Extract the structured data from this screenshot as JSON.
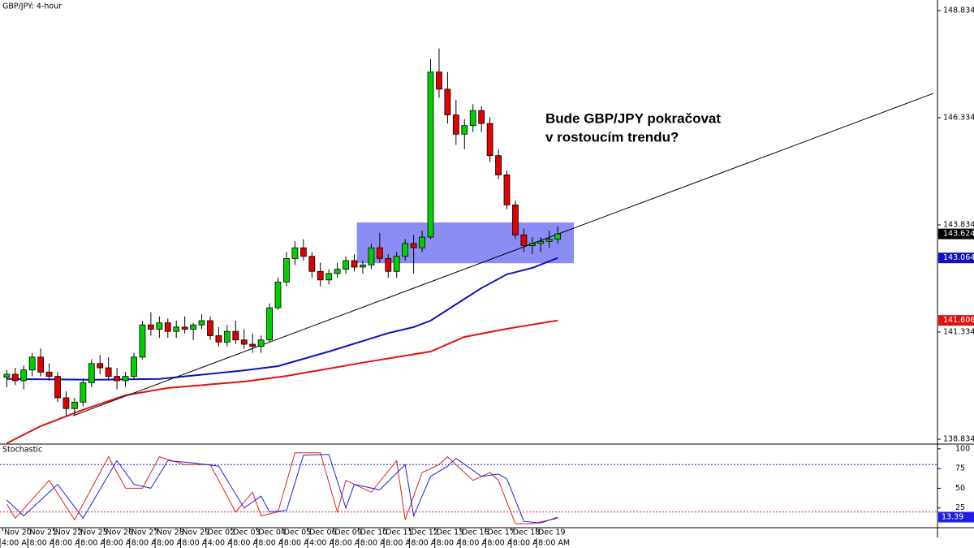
{
  "chart_data": {
    "type": "candlestick",
    "title": "GBP/JPY: 4-hour",
    "annotation_lines": [
      "Bude GBP/JPY pokračovat",
      "v rostoucím trendu?"
    ],
    "up_color": "#00d000",
    "down_color": "#e00000",
    "open": [
      140.28,
      140.35,
      140.2,
      140.45,
      140.75,
      140.4,
      140.3,
      139.8,
      139.55,
      139.7,
      140.15,
      140.6,
      140.5,
      140.3,
      140.2,
      140.3,
      140.75,
      141.5,
      141.4,
      141.55,
      141.35,
      141.45,
      141.4,
      141.5,
      141.6,
      141.25,
      141.1,
      141.35,
      141.15,
      141.05,
      141.0,
      141.15,
      141.9,
      142.5,
      143.05,
      143.3,
      143.1,
      142.75,
      142.55,
      142.7,
      142.8,
      143.0,
      142.85,
      142.9,
      143.3,
      143.05,
      142.75,
      143.1,
      143.4,
      143.3,
      143.55,
      147.4,
      147.0,
      146.4,
      145.95,
      146.15,
      146.5,
      146.2,
      145.45,
      145.0,
      144.3,
      143.6,
      143.35,
      143.4,
      143.45,
      143.5
    ],
    "high": [
      140.45,
      140.5,
      140.55,
      140.85,
      140.95,
      140.6,
      140.4,
      139.95,
      139.8,
      140.25,
      140.7,
      140.8,
      140.75,
      140.5,
      140.4,
      140.85,
      141.6,
      141.8,
      141.7,
      141.65,
      141.6,
      141.7,
      141.55,
      141.75,
      141.7,
      141.45,
      141.5,
      141.6,
      141.4,
      141.3,
      141.25,
      142.0,
      142.6,
      143.2,
      143.45,
      143.5,
      143.2,
      142.95,
      142.8,
      142.95,
      143.1,
      143.15,
      143.0,
      143.4,
      143.65,
      143.15,
      143.2,
      143.5,
      143.6,
      143.7,
      147.7,
      147.95,
      147.4,
      146.75,
      146.3,
      146.65,
      146.6,
      146.35,
      145.6,
      145.1,
      144.4,
      143.75,
      143.55,
      143.55,
      143.7,
      143.8
    ],
    "low": [
      140.05,
      140.1,
      140.0,
      140.3,
      140.3,
      140.2,
      139.7,
      139.38,
      139.4,
      139.6,
      140.05,
      140.35,
      140.2,
      140.0,
      140.05,
      140.25,
      140.7,
      141.25,
      141.2,
      141.2,
      141.2,
      141.3,
      141.15,
      141.4,
      141.15,
      141.0,
      141.0,
      141.05,
      140.95,
      140.85,
      140.85,
      141.1,
      141.85,
      142.4,
      142.9,
      143.0,
      142.6,
      142.4,
      142.45,
      142.6,
      142.7,
      142.75,
      142.7,
      142.8,
      142.95,
      142.6,
      142.6,
      143.0,
      142.7,
      143.2,
      143.5,
      146.8,
      146.2,
      145.7,
      145.6,
      146.0,
      146.0,
      145.3,
      144.9,
      144.2,
      143.5,
      143.2,
      143.15,
      143.2,
      143.3,
      143.4
    ],
    "close": [
      140.35,
      140.2,
      140.45,
      140.75,
      140.4,
      140.3,
      139.8,
      139.55,
      139.7,
      140.15,
      140.6,
      140.5,
      140.3,
      140.2,
      140.3,
      140.75,
      141.5,
      141.4,
      141.55,
      141.35,
      141.45,
      141.4,
      141.5,
      141.6,
      141.25,
      141.1,
      141.35,
      141.15,
      141.05,
      141.0,
      141.15,
      141.9,
      142.5,
      143.05,
      143.3,
      143.1,
      142.75,
      142.55,
      142.7,
      142.8,
      143.0,
      142.85,
      142.9,
      143.3,
      143.05,
      142.75,
      143.1,
      143.4,
      143.3,
      143.55,
      147.4,
      147.0,
      146.4,
      145.95,
      146.15,
      146.5,
      146.2,
      145.45,
      145.0,
      144.3,
      143.6,
      143.35,
      143.4,
      143.45,
      143.5,
      143.624
    ],
    "close_label_color": "#000000",
    "overlays": [
      {
        "color": "#1010c0",
        "x": [
          0,
          10,
          18,
          28,
          32,
          38,
          45,
          48,
          50,
          53,
          56,
          59,
          62,
          65
        ],
        "values": [
          140.24,
          140.22,
          140.24,
          140.44,
          140.54,
          140.88,
          141.31,
          141.45,
          141.6,
          141.98,
          142.36,
          142.68,
          142.83,
          143.064
        ]
      },
      {
        "color": "#e01010",
        "x": [
          0,
          4,
          9,
          14,
          19,
          28,
          33,
          42,
          50,
          54,
          59,
          65
        ],
        "values": [
          138.74,
          139.14,
          139.52,
          139.86,
          140.03,
          140.18,
          140.31,
          140.62,
          140.88,
          141.22,
          141.41,
          141.606
        ]
      }
    ],
    "trendline": {
      "color": "#000000",
      "x": [
        7.8,
        109.3
      ],
      "values": [
        139.38,
        146.9
      ]
    },
    "zone": {
      "color": "#8c8cf5",
      "x": [
        41.3,
        66.9
      ],
      "values": [
        142.94,
        143.89
      ]
    },
    "xlim": [
      -0.8,
      109.8
    ],
    "ylim": [
      138.74,
      149.08
    ],
    "yticks": [
      148.834,
      146.334,
      143.834,
      141.334,
      138.834
    ],
    "xticks": [
      {
        "value": -0.5,
        "label": "Nov 20"
      },
      {
        "value": 2.5,
        "label": "Nov 21"
      },
      {
        "value": 5.5,
        "label": "Nov 22"
      },
      {
        "value": 8.5,
        "label": "Nov 25"
      },
      {
        "value": 11.5,
        "label": "Nov 26"
      },
      {
        "value": 14.5,
        "label": "Nov 27"
      },
      {
        "value": 17.5,
        "label": "Nov 28"
      },
      {
        "value": 20.5,
        "label": "Nov 29"
      },
      {
        "value": 23.5,
        "label": "Dec 02"
      },
      {
        "value": 26.5,
        "label": "Dec 03"
      },
      {
        "value": 29.5,
        "label": "Dec 04"
      },
      {
        "value": 32.5,
        "label": "Dec 05"
      },
      {
        "value": 35.5,
        "label": "Dec 06"
      },
      {
        "value": 38.5,
        "label": "Dec 09"
      },
      {
        "value": 41.5,
        "label": "Dec 10"
      },
      {
        "value": 44.5,
        "label": "Dec 11"
      },
      {
        "value": 47.5,
        "label": "Dec 12"
      },
      {
        "value": 50.5,
        "label": "Dec 13"
      },
      {
        "value": 53.5,
        "label": "Dec 16"
      },
      {
        "value": 56.5,
        "label": "Dec 17"
      },
      {
        "value": 59.5,
        "label": "Dec 18"
      },
      {
        "value": 62.5,
        "label": "Dec 19"
      }
    ],
    "xticks_time": [
      {
        "value": -0.8,
        "label": "4:00 AM"
      },
      {
        "value": 2.5,
        "label": "8:00 AM"
      },
      {
        "value": 5.5,
        "label": "8:00 AM"
      },
      {
        "value": 8.5,
        "label": "8:00 AM"
      },
      {
        "value": 11.5,
        "label": "8:00 AM"
      },
      {
        "value": 14.5,
        "label": "8:00 AM"
      },
      {
        "value": 17.5,
        "label": "8:00 AM"
      },
      {
        "value": 20.5,
        "label": "8:00 AM"
      },
      {
        "value": 23.5,
        "label": "4:00 AM"
      },
      {
        "value": 26.5,
        "label": "8:00 AM"
      },
      {
        "value": 29.5,
        "label": "8:00 AM"
      },
      {
        "value": 32.5,
        "label": "8:00 AM"
      },
      {
        "value": 35.5,
        "label": "4:00 AM"
      },
      {
        "value": 38.5,
        "label": "8:00 AM"
      },
      {
        "value": 41.5,
        "label": "8:00 AM"
      },
      {
        "value": 44.5,
        "label": "8:00 AM"
      },
      {
        "value": 47.5,
        "label": "8:00 AM"
      },
      {
        "value": 50.5,
        "label": "8:00 AM"
      },
      {
        "value": 53.5,
        "label": "8:00 AM"
      },
      {
        "value": 56.5,
        "label": "8:00 AM"
      },
      {
        "value": 59.5,
        "label": "8:00 AM"
      },
      {
        "value": 62.5,
        "label": "8:00 AM"
      }
    ],
    "indicator": {
      "type": "line",
      "title": "Stochastic",
      "ylim": [
        0,
        105
      ],
      "yticks": [
        100,
        75,
        50,
        25
      ],
      "levels": [
        {
          "value": 80,
          "color": "#2020c0"
        },
        {
          "value": 20,
          "color": "#d02020"
        }
      ],
      "series": [
        {
          "color": "#e02020",
          "x": [
            0,
            1,
            5,
            8,
            12,
            14,
            16,
            18,
            21,
            24,
            27,
            29,
            30,
            32,
            34,
            37,
            39,
            40,
            43,
            46,
            47,
            49,
            51,
            52,
            55,
            57,
            58,
            60,
            62,
            65
          ],
          "values": [
            30,
            12,
            60,
            10,
            90,
            50,
            50,
            90,
            80,
            80,
            20,
            45,
            15,
            20,
            95,
            95,
            20,
            60,
            45,
            85,
            10,
            70,
            80,
            90,
            60,
            70,
            60,
            5,
            5,
            12
          ]
        },
        {
          "color": "#2020e0",
          "x": [
            0,
            2,
            6,
            9,
            13,
            15,
            17,
            19,
            22,
            25,
            28,
            30,
            31,
            33,
            35,
            38,
            40,
            41,
            44,
            47,
            48,
            50,
            52,
            53,
            56,
            58,
            59,
            61,
            63,
            65
          ],
          "values": [
            35,
            15,
            55,
            12,
            85,
            55,
            50,
            85,
            82,
            78,
            25,
            40,
            20,
            22,
            92,
            93,
            25,
            55,
            48,
            80,
            15,
            65,
            78,
            88,
            65,
            68,
            62,
            8,
            6,
            13.39
          ]
        }
      ]
    }
  }
}
